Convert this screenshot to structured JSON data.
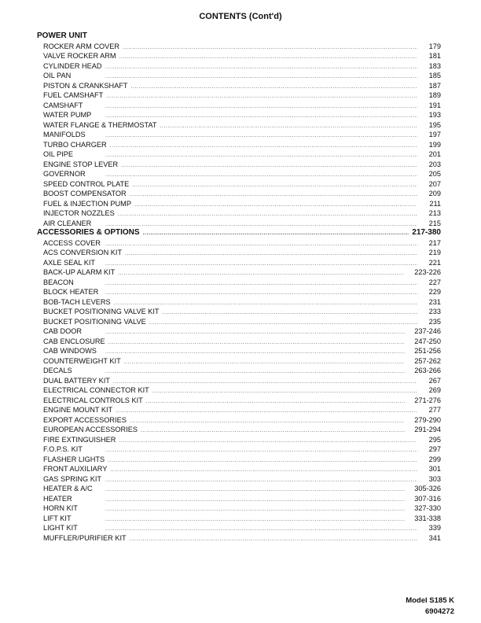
{
  "title": "CONTENTS (Cont'd)",
  "sections": [
    {
      "heading": "POWER UNIT",
      "pages": "",
      "items": [
        {
          "name": "ROCKER ARM COVER",
          "page": "179"
        },
        {
          "name": "VALVE ROCKER ARM",
          "page": "181"
        },
        {
          "name": "CYLINDER HEAD",
          "page": "183"
        },
        {
          "name": "OIL PAN",
          "page": "185"
        },
        {
          "name": "PISTON & CRANKSHAFT",
          "page": "187"
        },
        {
          "name": "FUEL CAMSHAFT",
          "page": "189"
        },
        {
          "name": "CAMSHAFT",
          "page": "191"
        },
        {
          "name": "WATER PUMP",
          "page": "193"
        },
        {
          "name": "WATER FLANGE & THERMOSTAT",
          "page": "195"
        },
        {
          "name": "MANIFOLDS",
          "page": "197"
        },
        {
          "name": "TURBO CHARGER",
          "page": "199"
        },
        {
          "name": "OIL PIPE",
          "page": "201"
        },
        {
          "name": "ENGINE STOP LEVER",
          "page": "203"
        },
        {
          "name": "GOVERNOR",
          "page": "205"
        },
        {
          "name": "SPEED CONTROL PLATE",
          "page": "207"
        },
        {
          "name": "BOOST COMPENSATOR",
          "page": "209"
        },
        {
          "name": "FUEL & INJECTION PUMP",
          "page": "211"
        },
        {
          "name": "INJECTOR NOZZLES",
          "page": "213"
        },
        {
          "name": "AIR CLEANER",
          "page": "215"
        }
      ]
    },
    {
      "heading": "ACCESSORIES & OPTIONS",
      "pages": "217-380",
      "items": [
        {
          "name": "ACCESS COVER",
          "page": "217"
        },
        {
          "name": "ACS CONVERSION KIT",
          "page": "219"
        },
        {
          "name": "AXLE SEAL KIT",
          "page": "221"
        },
        {
          "name": "BACK-UP ALARM KIT",
          "page": "223-226"
        },
        {
          "name": "BEACON",
          "page": "227"
        },
        {
          "name": "BLOCK HEATER",
          "page": "229"
        },
        {
          "name": "BOB-TACH LEVERS",
          "page": "231"
        },
        {
          "name": "BUCKET POSITIONING VALVE KIT",
          "page": "233"
        },
        {
          "name": "BUCKET POSITIONING VALVE",
          "page": "235"
        },
        {
          "name": "CAB DOOR",
          "page": "237-246"
        },
        {
          "name": "CAB ENCLOSURE",
          "page": "247-250"
        },
        {
          "name": "CAB WINDOWS",
          "page": "251-256"
        },
        {
          "name": "COUNTERWEIGHT KIT",
          "page": "257-262"
        },
        {
          "name": "DECALS",
          "page": "263-266"
        },
        {
          "name": "DUAL BATTERY KIT",
          "page": "267"
        },
        {
          "name": "ELECTRICAL CONNECTOR KIT",
          "page": "269"
        },
        {
          "name": "ELECTRICAL CONTROLS KIT",
          "page": "271-276"
        },
        {
          "name": "ENGINE MOUNT KIT",
          "page": "277"
        },
        {
          "name": "EXPORT ACCESSORIES",
          "page": "279-290"
        },
        {
          "name": "EUROPEAN ACCESSORIES",
          "page": "291-294"
        },
        {
          "name": "FIRE EXTINGUISHER",
          "page": "295"
        },
        {
          "name": "F.O.P.S. KIT",
          "page": "297"
        },
        {
          "name": "FLASHER LIGHTS",
          "page": "299"
        },
        {
          "name": "FRONT AUXILIARY",
          "page": "301"
        },
        {
          "name": "GAS SPRING KIT",
          "page": "303"
        },
        {
          "name": "HEATER & A/C",
          "page": "305-326"
        },
        {
          "name": "HEATER",
          "page": "307-316"
        },
        {
          "name": "HORN KIT",
          "page": "327-330"
        },
        {
          "name": "LIFT KIT",
          "page": "331-338"
        },
        {
          "name": "LIGHT KIT",
          "page": "339"
        },
        {
          "name": "MUFFLER/PURIFIER KIT",
          "page": "341"
        }
      ]
    }
  ],
  "footer": {
    "model": "Model S185 K",
    "part_number": "6904272"
  }
}
